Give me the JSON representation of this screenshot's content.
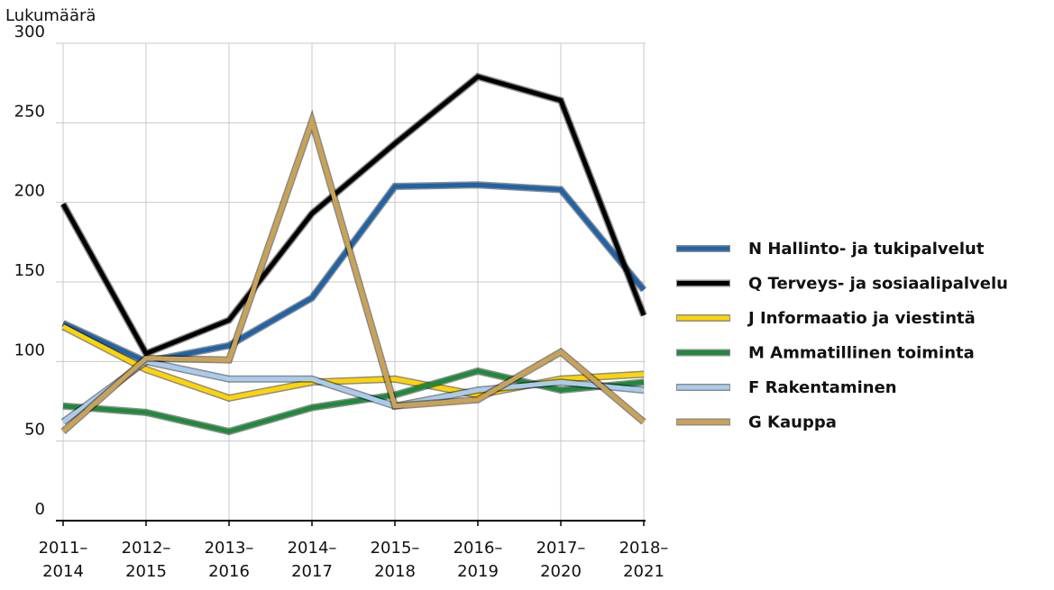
{
  "chart_data": {
    "type": "line",
    "y_label": "Lukumäärä",
    "categories": [
      "2011–2014",
      "2012–2015",
      "2013–2016",
      "2014–2017",
      "2015–2018",
      "2016–2019",
      "2017–2020",
      "2018–2021"
    ],
    "series": [
      {
        "name": "N Hallinto- ja tukipalvelut",
        "color": "#1f63a8",
        "values": [
          124,
          100,
          110,
          140,
          210,
          211,
          208,
          145
        ]
      },
      {
        "name": "Q Terveys- ja sosiaalipalvelu",
        "color": "#000000",
        "values": [
          199,
          105,
          126,
          193,
          237,
          279,
          264,
          129
        ]
      },
      {
        "name": "J Informaatio ja viestintä",
        "color": "#ffd400",
        "values": [
          122,
          95,
          77,
          87,
          89,
          79,
          89,
          92
        ]
      },
      {
        "name": "M Ammatillinen toiminta",
        "color": "#1e8a3c",
        "values": [
          72,
          68,
          56,
          71,
          79,
          94,
          82,
          87
        ]
      },
      {
        "name": "F Rakentaminen",
        "color": "#a9cbee",
        "values": [
          62,
          100,
          89,
          89,
          72,
          82,
          87,
          82
        ]
      },
      {
        "name": "G Kauppa",
        "color": "#c9a255",
        "values": [
          56,
          102,
          101,
          251,
          72,
          76,
          106,
          62
        ]
      }
    ],
    "ylim": [
      0,
      300
    ],
    "yticks": [
      0,
      50,
      100,
      150,
      200,
      250,
      300
    ],
    "grid": true
  }
}
